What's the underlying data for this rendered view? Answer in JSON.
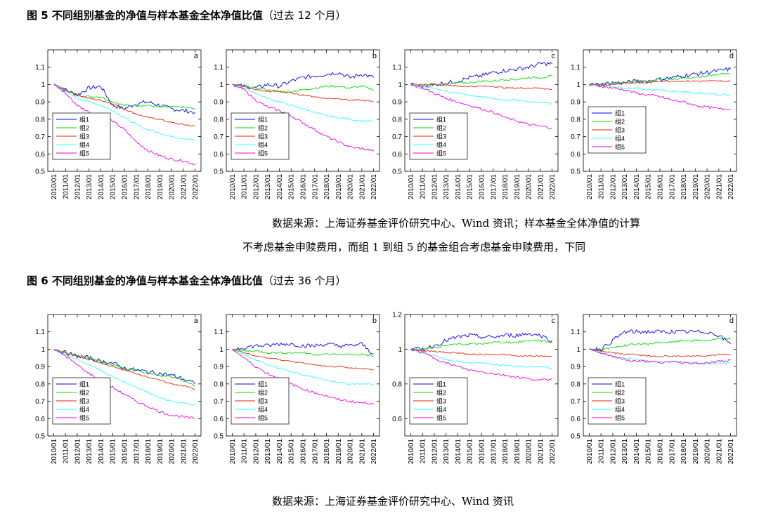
{
  "figures": [
    {
      "title_bold": "图 5  不同组别基金的净值与样本基金全体净值比值",
      "title_paren": "（过去 12 个月）",
      "source_line1": "数据来源：上海证券基金评价研究中心、Wind 资讯；样本基金全体净值的计算",
      "source_line2": "不考虑基金申赎费用，而组 1 到组 5 的基金组合考虑基金申赎费用，下同"
    },
    {
      "title_bold": "图 6  不同组别基金的净值与样本基金全体净值比值",
      "title_paren": "（过去 36 个月）",
      "source_line1": "数据来源：上海证券基金评价研究中心、Wind 资讯"
    }
  ],
  "colors": {
    "g1": "#0000ff",
    "g2": "#00dd00",
    "g3": "#ee2200",
    "g4": "#33ffff",
    "g5": "#ee00ee",
    "axis": "#000000"
  },
  "chart_data": [
    {
      "type": "line",
      "panel": "a",
      "figure": 5,
      "x": [
        "2010/01",
        "2011/01",
        "2012/01",
        "2013/01",
        "2014/01",
        "2015/01",
        "2016/01",
        "2017/01",
        "2018/01",
        "2019/01",
        "2020/01",
        "2021/01",
        "2022/01"
      ],
      "yticks": [
        "0.5",
        "0.6",
        "0.7",
        "0.8",
        "0.9",
        "1",
        "1.1"
      ],
      "ylim": [
        0.5,
        1.2
      ],
      "legend_placement": "bottom-left",
      "series": [
        {
          "name": "组1",
          "values": [
            1.0,
            0.97,
            0.94,
            0.98,
            0.99,
            0.88,
            0.86,
            0.89,
            0.9,
            0.88,
            0.86,
            0.85,
            0.84
          ]
        },
        {
          "name": "组2",
          "values": [
            1.0,
            0.97,
            0.94,
            0.93,
            0.93,
            0.9,
            0.88,
            0.88,
            0.88,
            0.87,
            0.87,
            0.87,
            0.86
          ]
        },
        {
          "name": "组3",
          "values": [
            1.0,
            0.97,
            0.94,
            0.92,
            0.91,
            0.89,
            0.86,
            0.83,
            0.81,
            0.8,
            0.78,
            0.77,
            0.76
          ]
        },
        {
          "name": "组4",
          "values": [
            1.0,
            0.96,
            0.92,
            0.9,
            0.88,
            0.85,
            0.81,
            0.77,
            0.74,
            0.72,
            0.7,
            0.69,
            0.68
          ]
        },
        {
          "name": "组5",
          "values": [
            1.0,
            0.95,
            0.88,
            0.84,
            0.82,
            0.79,
            0.74,
            0.67,
            0.62,
            0.59,
            0.57,
            0.56,
            0.54
          ]
        }
      ]
    },
    {
      "type": "line",
      "panel": "b",
      "figure": 5,
      "x": [
        "2010/01",
        "2011/01",
        "2012/01",
        "2013/01",
        "2014/01",
        "2015/01",
        "2016/01",
        "2017/01",
        "2018/01",
        "2019/01",
        "2020/01",
        "2021/01",
        "2022/01"
      ],
      "yticks": [
        "0.5",
        "0.6",
        "0.7",
        "0.8",
        "0.9",
        "1",
        "1.1"
      ],
      "ylim": [
        0.5,
        1.2
      ],
      "legend_placement": "bottom-left",
      "series": [
        {
          "name": "组1",
          "values": [
            1.0,
            0.99,
            0.98,
            1.0,
            0.99,
            1.02,
            1.04,
            1.05,
            1.06,
            1.07,
            1.04,
            1.06,
            1.04
          ]
        },
        {
          "name": "组2",
          "values": [
            1.0,
            0.99,
            0.98,
            0.97,
            0.96,
            0.96,
            0.97,
            0.98,
            0.99,
            0.99,
            0.98,
            0.99,
            0.97
          ]
        },
        {
          "name": "组3",
          "values": [
            1.0,
            0.99,
            0.97,
            0.96,
            0.96,
            0.95,
            0.94,
            0.93,
            0.92,
            0.92,
            0.91,
            0.91,
            0.9
          ]
        },
        {
          "name": "组4",
          "values": [
            1.0,
            0.98,
            0.95,
            0.92,
            0.9,
            0.88,
            0.86,
            0.84,
            0.82,
            0.81,
            0.8,
            0.79,
            0.79
          ]
        },
        {
          "name": "组5",
          "values": [
            1.0,
            0.97,
            0.91,
            0.87,
            0.85,
            0.82,
            0.78,
            0.74,
            0.7,
            0.67,
            0.64,
            0.63,
            0.62
          ]
        }
      ]
    },
    {
      "type": "line",
      "panel": "c",
      "figure": 5,
      "x": [
        "2010/01",
        "2011/01",
        "2012/01",
        "2013/01",
        "2014/01",
        "2015/01",
        "2016/01",
        "2017/01",
        "2018/01",
        "2019/01",
        "2020/01",
        "2021/01",
        "2022/01"
      ],
      "yticks": [
        "0.5",
        "0.6",
        "0.7",
        "0.8",
        "0.9",
        "1",
        "1.1"
      ],
      "ylim": [
        0.5,
        1.2
      ],
      "legend_placement": "bottom-left",
      "series": [
        {
          "name": "组1",
          "values": [
            1.0,
            0.99,
            1.0,
            1.01,
            1.02,
            1.04,
            1.05,
            1.07,
            1.08,
            1.09,
            1.1,
            1.12,
            1.12
          ]
        },
        {
          "name": "组2",
          "values": [
            1.0,
            0.99,
            1.0,
            1.0,
            1.01,
            1.01,
            1.02,
            1.02,
            1.03,
            1.03,
            1.04,
            1.04,
            1.05
          ]
        },
        {
          "name": "组3",
          "values": [
            1.0,
            1.0,
            1.0,
            1.0,
            0.99,
            0.99,
            0.99,
            0.99,
            0.98,
            0.98,
            0.98,
            0.98,
            0.97
          ]
        },
        {
          "name": "组4",
          "values": [
            1.0,
            0.99,
            0.98,
            0.96,
            0.95,
            0.94,
            0.93,
            0.92,
            0.91,
            0.91,
            0.9,
            0.9,
            0.89
          ]
        },
        {
          "name": "组5",
          "values": [
            1.0,
            0.98,
            0.95,
            0.92,
            0.9,
            0.88,
            0.86,
            0.84,
            0.81,
            0.79,
            0.77,
            0.76,
            0.75
          ]
        }
      ]
    },
    {
      "type": "line",
      "panel": "d",
      "figure": 5,
      "x": [
        "2010/01",
        "2011/01",
        "2012/01",
        "2013/01",
        "2014/01",
        "2015/01",
        "2016/01",
        "2017/01",
        "2018/01",
        "2019/01",
        "2020/01",
        "2021/01",
        "2022/01"
      ],
      "yticks": [
        "0.5",
        "0.6",
        "0.7",
        "0.8",
        "0.9",
        "1",
        "1.1"
      ],
      "ylim": [
        0.5,
        1.2
      ],
      "legend_placement": "bottom-left",
      "series": [
        {
          "name": "组1",
          "values": [
            1.0,
            1.0,
            1.01,
            1.01,
            1.02,
            1.02,
            1.03,
            1.04,
            1.05,
            1.06,
            1.07,
            1.08,
            1.09
          ]
        },
        {
          "name": "组2",
          "values": [
            1.0,
            1.0,
            1.01,
            1.01,
            1.02,
            1.02,
            1.03,
            1.03,
            1.04,
            1.04,
            1.05,
            1.06,
            1.06
          ]
        },
        {
          "name": "组3",
          "values": [
            1.0,
            1.0,
            1.0,
            1.01,
            1.01,
            1.01,
            1.02,
            1.02,
            1.02,
            1.02,
            1.02,
            1.02,
            1.02
          ]
        },
        {
          "name": "组4",
          "values": [
            1.0,
            0.99,
            0.99,
            0.98,
            0.98,
            0.97,
            0.97,
            0.96,
            0.96,
            0.95,
            0.95,
            0.94,
            0.94
          ]
        },
        {
          "name": "组5",
          "values": [
            1.0,
            0.99,
            0.98,
            0.97,
            0.95,
            0.94,
            0.93,
            0.91,
            0.9,
            0.88,
            0.87,
            0.86,
            0.86
          ]
        }
      ]
    },
    {
      "type": "line",
      "panel": "a",
      "figure": 6,
      "x": [
        "2010/01",
        "2011/01",
        "2012/01",
        "2013/01",
        "2014/01",
        "2015/01",
        "2016/01",
        "2017/01",
        "2018/01",
        "2019/01",
        "2020/01",
        "2021/01",
        "2022/01"
      ],
      "yticks": [
        "0.5",
        "0.6",
        "0.7",
        "0.8",
        "0.9",
        "1",
        "1.1"
      ],
      "ylim": [
        0.5,
        1.2
      ],
      "legend_placement": "bottom-left",
      "series": [
        {
          "name": "组1",
          "values": [
            1.0,
            0.98,
            0.96,
            0.95,
            0.93,
            0.92,
            0.89,
            0.88,
            0.87,
            0.86,
            0.85,
            0.83,
            0.8
          ]
        },
        {
          "name": "组2",
          "values": [
            1.0,
            0.98,
            0.96,
            0.95,
            0.93,
            0.91,
            0.89,
            0.88,
            0.86,
            0.85,
            0.84,
            0.82,
            0.79
          ]
        },
        {
          "name": "组3",
          "values": [
            1.0,
            0.98,
            0.96,
            0.94,
            0.92,
            0.9,
            0.88,
            0.86,
            0.84,
            0.82,
            0.8,
            0.79,
            0.77
          ]
        },
        {
          "name": "组4",
          "values": [
            1.0,
            0.97,
            0.94,
            0.91,
            0.88,
            0.84,
            0.81,
            0.78,
            0.75,
            0.72,
            0.7,
            0.69,
            0.68
          ]
        },
        {
          "name": "组5",
          "values": [
            1.0,
            0.96,
            0.91,
            0.86,
            0.82,
            0.78,
            0.74,
            0.7,
            0.67,
            0.64,
            0.62,
            0.61,
            0.6
          ]
        }
      ]
    },
    {
      "type": "line",
      "panel": "b",
      "figure": 6,
      "x": [
        "2010/01",
        "2011/01",
        "2012/01",
        "2013/01",
        "2014/01",
        "2015/01",
        "2016/01",
        "2017/01",
        "2018/01",
        "2019/01",
        "2020/01",
        "2021/01",
        "2022/01"
      ],
      "yticks": [
        "0.5",
        "0.6",
        "0.7",
        "0.8",
        "0.9",
        "1",
        "1.1"
      ],
      "ylim": [
        0.5,
        1.2
      ],
      "legend_placement": "bottom-left",
      "series": [
        {
          "name": "组1",
          "values": [
            1.0,
            1.01,
            1.02,
            1.02,
            1.03,
            1.03,
            1.02,
            1.02,
            1.03,
            1.02,
            1.02,
            1.03,
            0.97
          ]
        },
        {
          "name": "组2",
          "values": [
            1.0,
            0.99,
            0.99,
            0.98,
            0.98,
            0.98,
            0.98,
            0.97,
            0.97,
            0.97,
            0.97,
            0.97,
            0.96
          ]
        },
        {
          "name": "组3",
          "values": [
            1.0,
            0.98,
            0.96,
            0.95,
            0.94,
            0.93,
            0.92,
            0.91,
            0.9,
            0.9,
            0.89,
            0.89,
            0.88
          ]
        },
        {
          "name": "组4",
          "values": [
            1.0,
            0.97,
            0.94,
            0.91,
            0.89,
            0.87,
            0.85,
            0.84,
            0.82,
            0.81,
            0.8,
            0.8,
            0.8
          ]
        },
        {
          "name": "组5",
          "values": [
            1.0,
            0.95,
            0.9,
            0.86,
            0.83,
            0.8,
            0.77,
            0.75,
            0.73,
            0.71,
            0.7,
            0.69,
            0.69
          ]
        }
      ]
    },
    {
      "type": "line",
      "panel": "c",
      "figure": 6,
      "x": [
        "2010/01",
        "2011/01",
        "2012/01",
        "2013/01",
        "2014/01",
        "2015/01",
        "2016/01",
        "2017/01",
        "2018/01",
        "2019/01",
        "2020/01",
        "2021/01",
        "2022/01"
      ],
      "yticks": [
        "0.6",
        "0.8",
        "1",
        "1.2"
      ],
      "ylim": [
        0.5,
        1.2
      ],
      "legend_placement": "bottom-left",
      "series": [
        {
          "name": "组1",
          "values": [
            1.0,
            1.0,
            1.02,
            1.05,
            1.07,
            1.08,
            1.07,
            1.07,
            1.08,
            1.08,
            1.09,
            1.08,
            1.05
          ]
        },
        {
          "name": "组2",
          "values": [
            1.0,
            1.0,
            1.01,
            1.02,
            1.03,
            1.03,
            1.03,
            1.04,
            1.04,
            1.04,
            1.05,
            1.05,
            1.04
          ]
        },
        {
          "name": "组3",
          "values": [
            1.0,
            0.99,
            0.99,
            0.98,
            0.98,
            0.97,
            0.97,
            0.97,
            0.97,
            0.96,
            0.96,
            0.96,
            0.96
          ]
        },
        {
          "name": "组4",
          "values": [
            1.0,
            0.98,
            0.96,
            0.94,
            0.93,
            0.92,
            0.92,
            0.91,
            0.91,
            0.9,
            0.9,
            0.9,
            0.89
          ]
        },
        {
          "name": "组5",
          "values": [
            1.0,
            0.98,
            0.95,
            0.92,
            0.9,
            0.88,
            0.87,
            0.86,
            0.85,
            0.84,
            0.83,
            0.82,
            0.83
          ]
        }
      ]
    },
    {
      "type": "line",
      "panel": "d",
      "figure": 6,
      "x": [
        "2010/01",
        "2011/01",
        "2012/01",
        "2013/01",
        "2014/01",
        "2015/01",
        "2016/01",
        "2017/01",
        "2018/01",
        "2019/01",
        "2020/01",
        "2021/01",
        "2022/01"
      ],
      "yticks": [
        "0.5",
        "0.6",
        "0.7",
        "0.8",
        "0.9",
        "1",
        "1.1"
      ],
      "ylim": [
        0.5,
        1.2
      ],
      "legend_placement": "bottom-left",
      "series": [
        {
          "name": "组1",
          "values": [
            1.0,
            1.0,
            1.05,
            1.1,
            1.1,
            1.1,
            1.1,
            1.1,
            1.1,
            1.1,
            1.1,
            1.08,
            1.03
          ]
        },
        {
          "name": "组2",
          "values": [
            1.0,
            1.0,
            1.01,
            1.02,
            1.03,
            1.03,
            1.04,
            1.04,
            1.05,
            1.05,
            1.05,
            1.06,
            1.06
          ]
        },
        {
          "name": "组3",
          "values": [
            1.0,
            0.99,
            0.98,
            0.97,
            0.97,
            0.96,
            0.96,
            0.96,
            0.96,
            0.96,
            0.96,
            0.97,
            0.97
          ]
        },
        {
          "name": "组4",
          "values": [
            1.0,
            0.98,
            0.96,
            0.95,
            0.94,
            0.93,
            0.93,
            0.93,
            0.93,
            0.92,
            0.92,
            0.92,
            0.92
          ]
        },
        {
          "name": "组5",
          "values": [
            1.0,
            0.98,
            0.96,
            0.94,
            0.93,
            0.93,
            0.92,
            0.93,
            0.92,
            0.92,
            0.92,
            0.93,
            0.94
          ]
        }
      ]
    }
  ]
}
